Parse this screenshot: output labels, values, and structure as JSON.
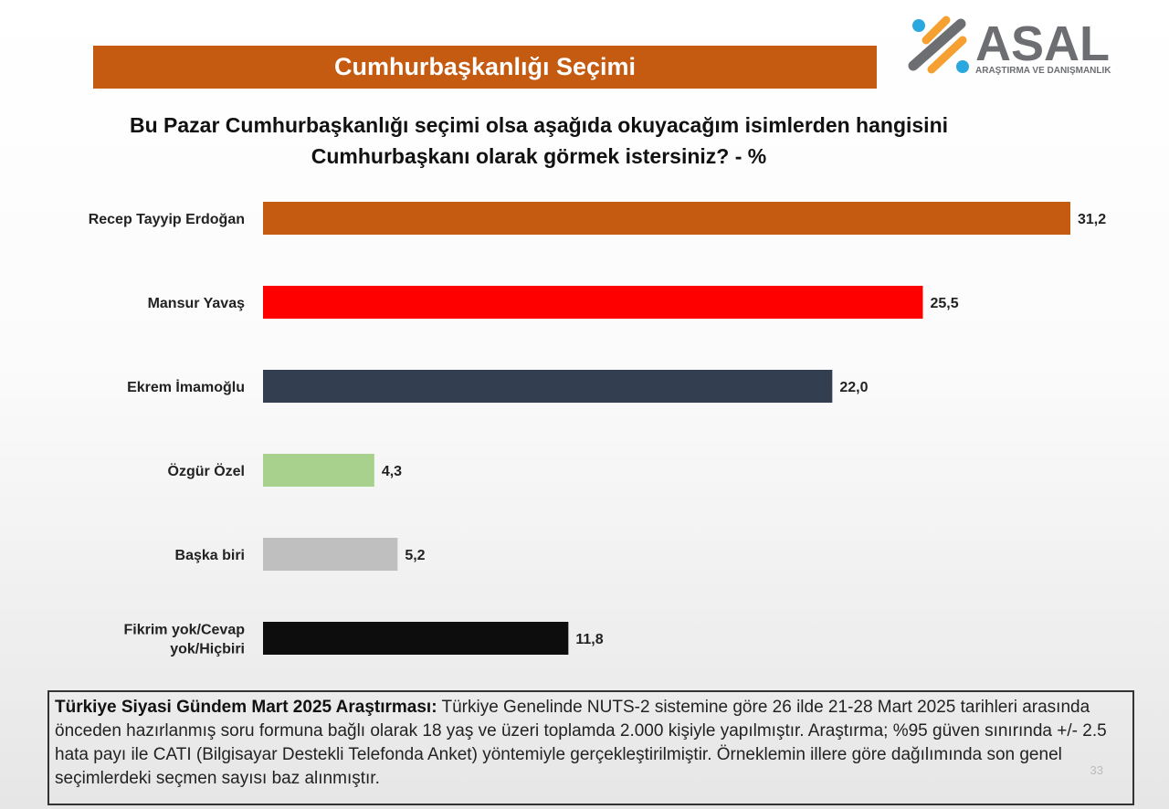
{
  "header": {
    "title": "Cumhurbaşkanlığı Seçimi"
  },
  "logo": {
    "name": "ASAL",
    "tagline": "ARAŞTIRMA VE DANIŞMANLIK",
    "colors": {
      "gray": "#6d6e71",
      "orange": "#f5a031",
      "blue": "#29a8e0"
    }
  },
  "chart_data": {
    "type": "bar",
    "orientation": "horizontal",
    "title": "Bu Pazar Cumhurbaşkanlığı seçimi olsa aşağıda okuyacağım isimlerden hangisini Cumhurbaşkanı olarak görmek istersiniz? - %",
    "categories": [
      "Recep Tayyip Erdoğan",
      "Mansur Yavaş",
      "Ekrem İmamoğlu",
      "Özgür Özel",
      "Başka biri",
      "Fikrim yok/Cevap yok/Hiçbiri"
    ],
    "values": [
      31.2,
      25.5,
      22.0,
      4.3,
      5.2,
      11.8
    ],
    "data_labels": [
      "31,2",
      "25,5",
      "22,0",
      "4,3",
      "5,2",
      "11,8"
    ],
    "colors": [
      "#c55a11",
      "#ff0000",
      "#333f50",
      "#a9d18e",
      "#bfbfbf",
      "#0d0d0d"
    ],
    "xlim": [
      0,
      31.2
    ],
    "grid": false,
    "legend": "none"
  },
  "footer": {
    "bold": "Türkiye Siyasi Gündem Mart 2025 Araştırması:",
    "text": " Türkiye Genelinde NUTS-2 sistemine göre 26 ilde  21-28 Mart 2025 tarihleri arasında önceden hazırlanmış soru formuna bağlı olarak 18 yaş ve üzeri toplamda 2.000 kişiyle yapılmıştır. Araştırma; %95 güven sınırında +/- 2.5 hata payı ile  CATI (Bilgisayar Destekli Telefonda Anket) yöntemiyle gerçekleştirilmiştir. Örneklemin illere göre dağılımında son genel seçimlerdeki seçmen sayısı baz alınmıştır."
  },
  "page_number": "33"
}
